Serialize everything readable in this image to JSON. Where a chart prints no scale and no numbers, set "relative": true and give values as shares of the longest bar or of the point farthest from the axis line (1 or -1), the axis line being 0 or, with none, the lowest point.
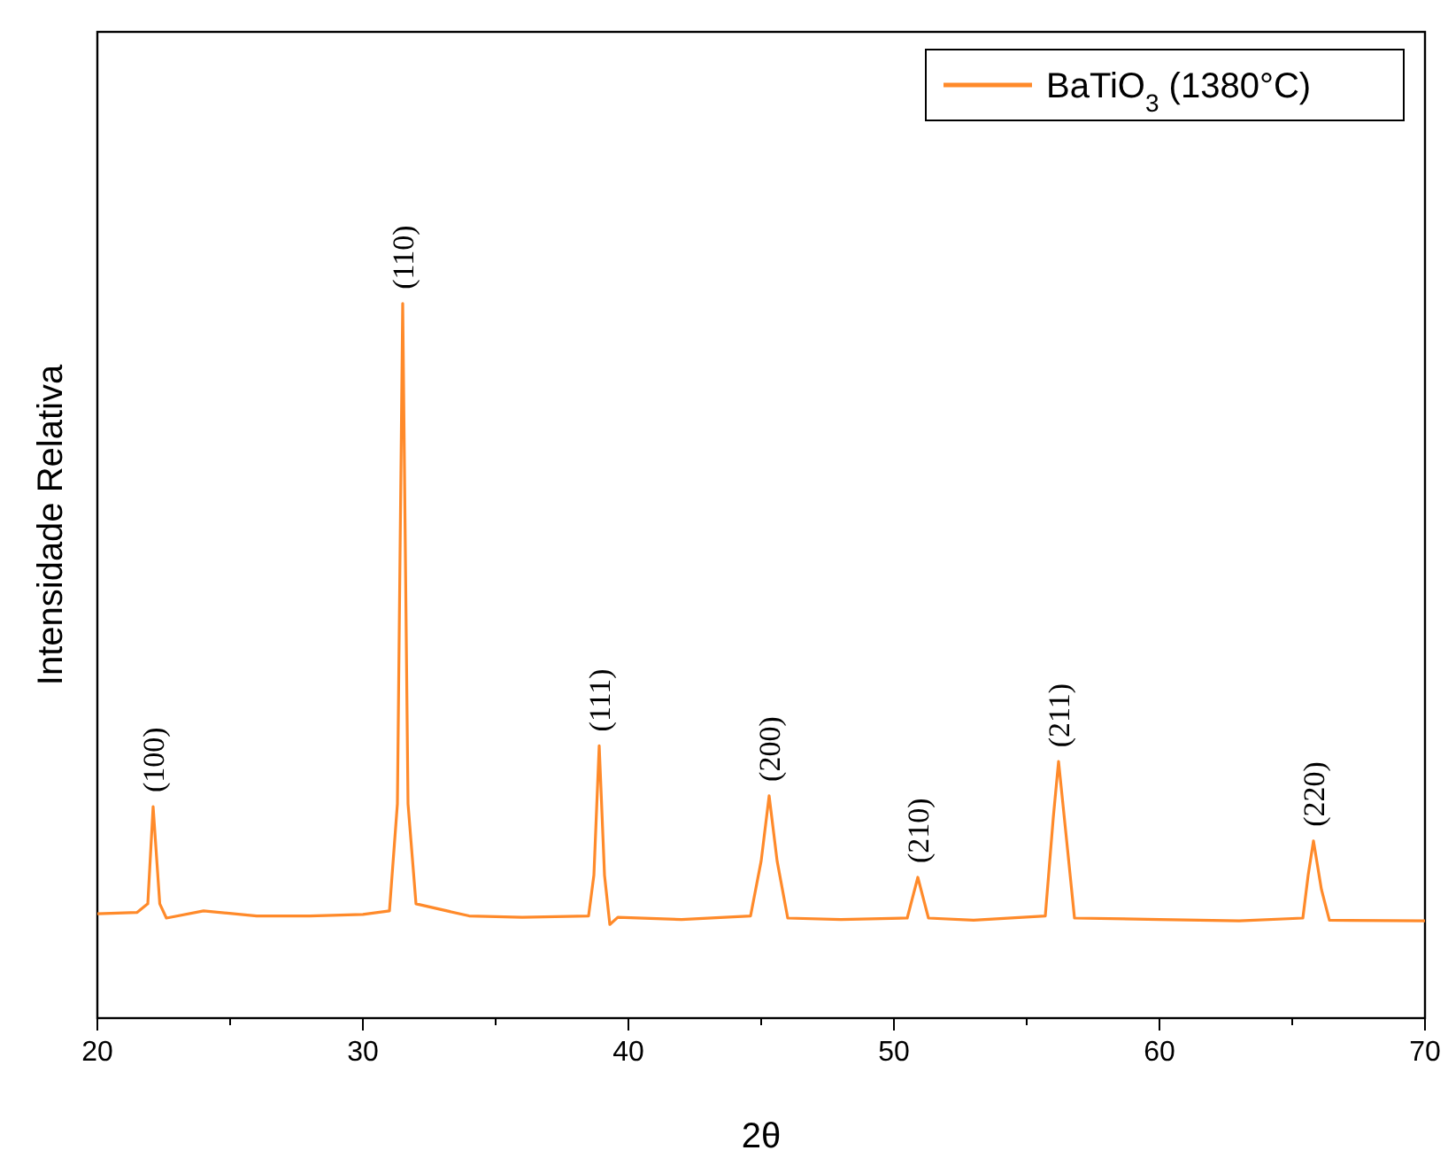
{
  "chart_data": {
    "type": "line",
    "relative": true,
    "xlabel": "2θ",
    "ylabel": "Intensidade Relativa",
    "xlim": [
      20,
      70
    ],
    "xticks": [
      20,
      {
        "value": 25,
        "label": null
      },
      30,
      {
        "value": 35,
        "label": null
      },
      40,
      {
        "value": 45,
        "label": null
      },
      50,
      {
        "value": 55,
        "label": null
      },
      60,
      {
        "value": 65,
        "label": null
      },
      70
    ],
    "tick_labels": "x",
    "legend": "top right",
    "marker": "none",
    "line_style": "solid",
    "series": [
      {
        "name": "BaTiO$_{3}$ (1380°C)",
        "color": "#ff8a2a",
        "x": [
          20,
          21.5,
          21.9,
          22.1,
          22.35,
          22.6,
          24,
          26,
          28,
          30,
          31,
          31.3,
          31.5,
          31.7,
          32,
          34,
          36,
          38.5,
          38.7,
          38.9,
          39.1,
          39.3,
          39.6,
          42,
          44.6,
          45,
          45.3,
          45.6,
          46,
          48,
          50.5,
          50.9,
          51.3,
          53,
          55.7,
          56,
          56.2,
          56.5,
          56.8,
          60,
          63,
          65.4,
          65.6,
          65.8,
          66.1,
          66.4,
          70
        ],
        "values": [
          0.146,
          0.148,
          0.16,
          0.296,
          0.16,
          0.14,
          0.15,
          0.143,
          0.143,
          0.145,
          0.15,
          0.3,
          1,
          0.3,
          0.16,
          0.143,
          0.141,
          0.143,
          0.2,
          0.381,
          0.2,
          0.131,
          0.141,
          0.138,
          0.143,
          0.22,
          0.311,
          0.22,
          0.14,
          0.138,
          0.14,
          0.197,
          0.14,
          0.137,
          0.143,
          0.28,
          0.359,
          0.25,
          0.14,
          0.138,
          0.136,
          0.14,
          0.2,
          0.248,
          0.18,
          0.137,
          0.136
        ]
      }
    ],
    "annotations": [
      {
        "text": "(100)",
        "x": 22.1,
        "y": 0.296
      },
      {
        "text": "(110)",
        "x": 31.5,
        "y": 1
      },
      {
        "text": "(111)",
        "x": 38.9,
        "y": 0.381
      },
      {
        "text": "(200)",
        "x": 45.3,
        "y": 0.311
      },
      {
        "text": "(210)",
        "x": 50.9,
        "y": 0.197
      },
      {
        "text": "(211)",
        "x": 56.2,
        "y": 0.359
      },
      {
        "text": "(220)",
        "x": 65.8,
        "y": 0.248
      }
    ]
  }
}
